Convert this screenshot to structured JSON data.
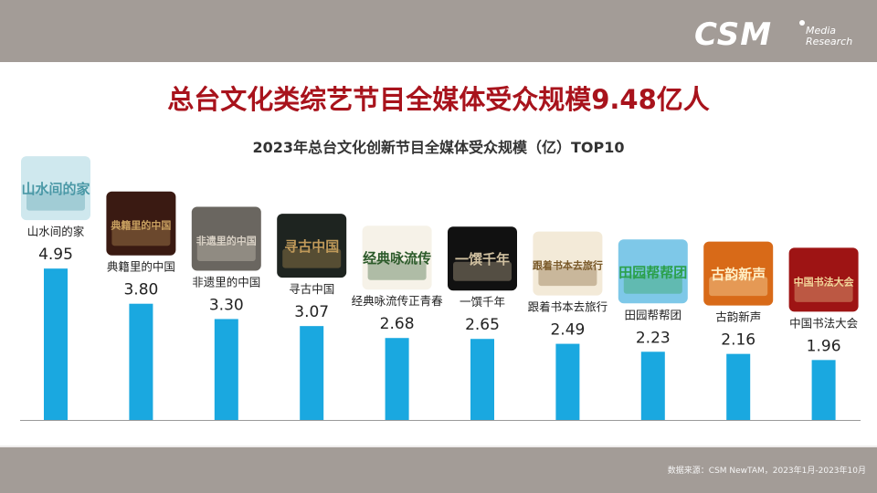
{
  "header": {
    "logo_main": "CSM",
    "logo_sub_1": "Media",
    "logo_sub_2": "Research"
  },
  "title": "总台文化类综艺节目全媒体受众规模9.48亿人",
  "subtitle": "2023年总台文化创新节目全媒体受众规模（亿）TOP10",
  "source": "数据来源：CSM NewTAM，2023年1月-2023年10月",
  "colors": {
    "bar": "#1aa8e0",
    "title": "#a8131c",
    "band": "#a39c97"
  },
  "chart_data": {
    "type": "bar",
    "categories": [
      "山水间的家",
      "典籍里的中国",
      "非遗里的中国",
      "寻古中国",
      "经典咏流传正青春",
      "一馔千年",
      "跟着书本去旅行",
      "田园帮帮团",
      "古韵新声",
      "中国书法大会"
    ],
    "values": [
      4.95,
      3.8,
      3.3,
      3.07,
      2.68,
      2.65,
      2.49,
      2.23,
      2.16,
      1.96
    ],
    "value_labels": [
      "4.95",
      "3.80",
      "3.30",
      "3.07",
      "2.68",
      "2.65",
      "2.49",
      "2.23",
      "2.16",
      "1.96"
    ],
    "thumbnail_captions": [
      "山水间的家",
      "典籍里的中国",
      "非遗里的中国",
      "寻古中国",
      "经典咏流传",
      "一馔千年",
      "跟着书本去旅行",
      "田园帮帮团",
      "古韵新声",
      "中国书法大会"
    ],
    "title": "2023年总台文化创新节目全媒体受众规模（亿）TOP10",
    "xlabel": "",
    "ylabel": "",
    "ylim": [
      0,
      5
    ],
    "grid": false,
    "legend": "none"
  }
}
